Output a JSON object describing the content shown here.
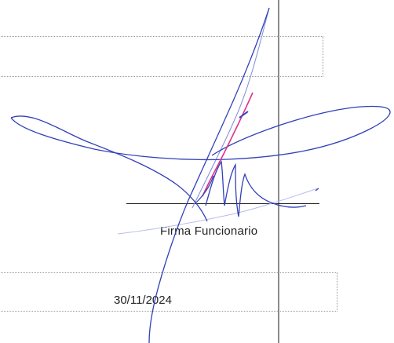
{
  "signature_block": {
    "label": "Firma Funcionario",
    "date": "30/11/2024"
  },
  "colors": {
    "ink_blue": "#3340b8",
    "ink_light": "#8a93d8",
    "ink_pink": "#e0308a",
    "rule": "#1a1a1a"
  }
}
